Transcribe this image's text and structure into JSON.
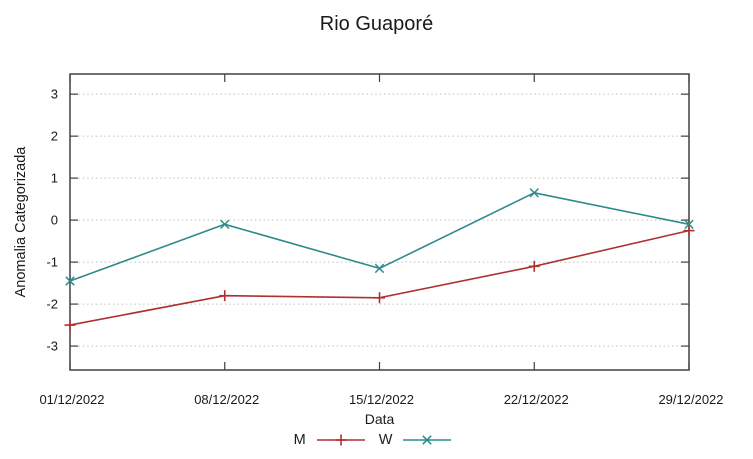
{
  "chart_data": {
    "type": "line",
    "title": "Rio Guaporé",
    "xlabel": "Data",
    "ylabel": "Anomalia Categorizada",
    "categories": [
      "01/12/2022",
      "08/12/2022",
      "15/12/2022",
      "22/12/2022",
      "29/12/2022"
    ],
    "series": [
      {
        "name": "M",
        "values": [
          -2.5,
          -1.8,
          -1.85,
          -1.1,
          -0.25
        ],
        "color": "#b03030",
        "marker": "plus"
      },
      {
        "name": "W",
        "values": [
          -1.45,
          -0.1,
          -1.15,
          0.65,
          -0.1
        ],
        "color": "#2e8b8b",
        "marker": "cross"
      }
    ],
    "yticks": [
      3,
      2,
      1,
      0,
      -1,
      -2,
      -3
    ],
    "ylim": [
      -3.57,
      3.48
    ],
    "grid": "horizontal-dotted",
    "grid_color": "#bfbfbf",
    "axis_color": "#404040",
    "legend_position": "bottom-center"
  }
}
